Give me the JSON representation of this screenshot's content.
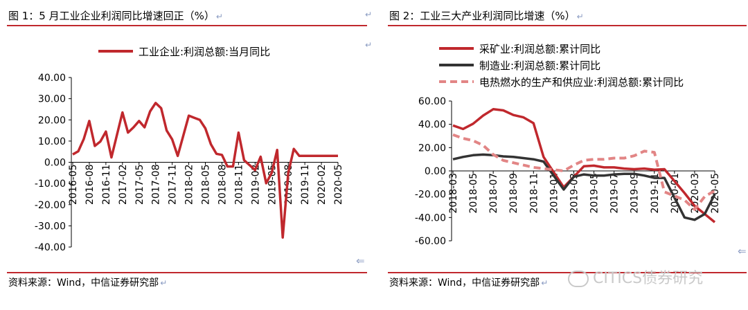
{
  "left": {
    "title": "图 1：5 月工业企业利润同比增速回正（%）",
    "source": "资料来源：Wind，中信证券研究部",
    "chart_data": {
      "type": "line",
      "title": "",
      "ylim": [
        -40,
        40
      ],
      "yticks": [
        "40.00",
        "30.00",
        "20.00",
        "10.00",
        "0.00",
        "-10.00",
        "-20.00",
        "-30.00",
        "-40.00"
      ],
      "xticks": [
        "2016-05",
        "2016-08",
        "2016-11",
        "2017-02",
        "2017-05",
        "2017-08",
        "2017-11",
        "2018-02",
        "2018-05",
        "2018-08",
        "2018-11",
        "2019-02",
        "2019-05",
        "2019-08",
        "2019-11",
        "2020-02",
        "2020-05"
      ],
      "legend_position": "top",
      "series": [
        {
          "name": "工业企业:利润总额:当月同比",
          "color": "#c0282d",
          "dash": "solid",
          "x": [
            "2016-05",
            "2016-06",
            "2016-07",
            "2016-08",
            "2016-09",
            "2016-10",
            "2016-11",
            "2016-12",
            "2017-02",
            "2017-03",
            "2017-04",
            "2017-05",
            "2017-06",
            "2017-07",
            "2017-08",
            "2017-09",
            "2017-10",
            "2017-11",
            "2017-12",
            "2018-02",
            "2018-03",
            "2018-04",
            "2018-05",
            "2018-06",
            "2018-07",
            "2018-08",
            "2018-09",
            "2018-10",
            "2018-11",
            "2018-12",
            "2019-02",
            "2019-03",
            "2019-04",
            "2019-05",
            "2019-06",
            "2019-07",
            "2019-08",
            "2019-09",
            "2019-10",
            "2019-11",
            "2019-12",
            "2020-02",
            "2020-03",
            "2020-04",
            "2020-05"
          ],
          "y": [
            3.7,
            5.2,
            11.0,
            19.5,
            7.7,
            9.8,
            14.5,
            2.3,
            23.5,
            14.0,
            16.5,
            19.5,
            16.5,
            24.0,
            28.0,
            25.5,
            15.0,
            10.8,
            3.0,
            22.0,
            21.0,
            20.0,
            16.0,
            8.5,
            4.0,
            3.5,
            -2.0,
            -2.0,
            14.0,
            1.0,
            -3.7,
            2.6,
            -9.9,
            -5.0,
            5.8,
            -35.5,
            -5.0,
            6.3,
            3.0,
            3.0,
            3.0,
            3.0,
            3.0,
            3.0,
            3.0
          ]
        }
      ]
    }
  },
  "right": {
    "title": "图 2：工业三大产业利润同比增速（%）",
    "source": "资料来源：Wind，中信证券研究部",
    "chart_data": {
      "type": "line",
      "title": "",
      "ylim": [
        -60,
        60
      ],
      "yticks": [
        "60.00",
        "40.00",
        "20.00",
        "0.00",
        "-20.00",
        "-40.00",
        "-60.00"
      ],
      "xticks": [
        "2018-03",
        "2018-05",
        "2018-07",
        "2018-09",
        "2018-11",
        "2019-01",
        "2019-03",
        "2019-05",
        "2019-07",
        "2019-09",
        "2019-11",
        "2020-01",
        "2020-03",
        "2020-05"
      ],
      "legend_position": "top-left",
      "series": [
        {
          "name": "采矿业:利润总额:累计同比",
          "color": "#c0282d",
          "dash": "solid",
          "x": [
            "2018-03",
            "2018-04",
            "2018-05",
            "2018-06",
            "2018-07",
            "2018-08",
            "2018-09",
            "2018-10",
            "2018-11",
            "2018-12",
            "2019-02",
            "2019-03",
            "2019-04",
            "2019-05",
            "2019-06",
            "2019-07",
            "2019-08",
            "2019-09",
            "2019-10",
            "2019-11",
            "2019-12",
            "2020-02",
            "2020-03",
            "2020-04",
            "2020-05"
          ],
          "y": [
            39.0,
            36.0,
            40.5,
            47.5,
            53.0,
            52.0,
            48.0,
            46.0,
            41.0,
            12.0,
            -14.0,
            -5.0,
            4.0,
            4.5,
            3.0,
            3.0,
            2.0,
            1.5,
            2.0,
            1.0,
            1.5,
            -19.0,
            -30.0,
            -37.0,
            -44.0
          ]
        },
        {
          "name": "制造业:利润总额:累计同比",
          "color": "#333333",
          "dash": "solid",
          "x": [
            "2018-03",
            "2018-04",
            "2018-05",
            "2018-06",
            "2018-07",
            "2018-08",
            "2018-09",
            "2018-10",
            "2018-11",
            "2018-12",
            "2019-02",
            "2019-03",
            "2019-04",
            "2019-05",
            "2019-06",
            "2019-07",
            "2019-08",
            "2019-09",
            "2019-10",
            "2019-11",
            "2019-12",
            "2020-02",
            "2020-03",
            "2020-04",
            "2020-05"
          ],
          "y": [
            10.0,
            12.0,
            13.5,
            14.0,
            13.5,
            12.5,
            12.0,
            11.0,
            10.0,
            8.0,
            -16.0,
            -5.0,
            -3.0,
            -4.0,
            -4.0,
            -3.0,
            -2.5,
            -2.5,
            -4.0,
            -6.0,
            -6.0,
            -40.0,
            -42.0,
            -37.0,
            -20.0
          ]
        },
        {
          "name": "电热燃水的生产和供应业:利润总额:累计同比",
          "color": "#e28585",
          "dash": "dashed",
          "x": [
            "2018-03",
            "2018-04",
            "2018-05",
            "2018-06",
            "2018-07",
            "2018-08",
            "2018-09",
            "2018-10",
            "2018-11",
            "2018-12",
            "2019-02",
            "2019-03",
            "2019-04",
            "2019-05",
            "2019-06",
            "2019-07",
            "2019-08",
            "2019-09",
            "2019-10",
            "2019-11",
            "2019-12",
            "2020-02",
            "2020-03",
            "2020-04",
            "2020-05"
          ],
          "y": [
            31.0,
            28.0,
            26.0,
            22.0,
            14.0,
            9.0,
            7.0,
            5.0,
            3.0,
            2.0,
            0.0,
            5.0,
            9.0,
            10.0,
            10.0,
            11.0,
            11.0,
            13.0,
            17.0,
            16.0,
            -18.0,
            -25.0,
            -33.0,
            -22.0,
            -17.0
          ]
        }
      ]
    }
  },
  "watermark": "CITICS债券研究"
}
